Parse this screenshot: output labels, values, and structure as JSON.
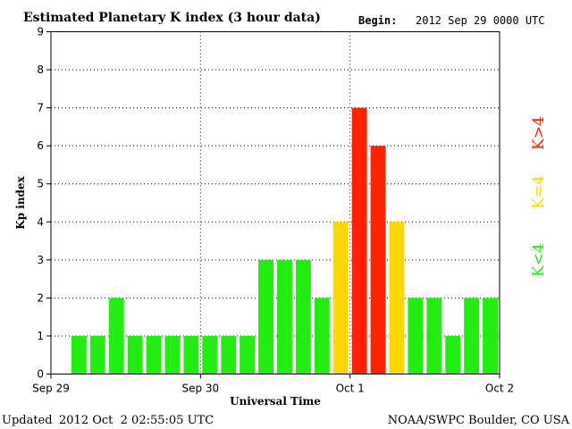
{
  "header": {
    "title": "Estimated Planetary K index (3 hour data)",
    "begin_label": "Begin:",
    "begin_value": "2012 Sep 29 0000 UTC"
  },
  "footer": {
    "updated_label": "Updated",
    "updated_value": "2012 Oct  2 02:55:05 UTC",
    "source": "NOAA/SWPC Boulder, CO USA"
  },
  "legend": {
    "low": "K<4",
    "equal": "K=4",
    "high": "K>4"
  },
  "colors": {
    "low": "#22ee11",
    "equal": "#ffd700",
    "high": "#ff2200",
    "grid": "#000000"
  },
  "chart_data": {
    "type": "bar",
    "title": "Estimated Planetary K index (3 hour data)",
    "xlabel": "Universal Time",
    "ylabel": "Kp index",
    "ylim": [
      0,
      9
    ],
    "yticks": [
      0,
      1,
      2,
      3,
      4,
      5,
      6,
      7,
      8,
      9
    ],
    "xticks": [
      "Sep 29",
      "Sep 30",
      "Oct 1",
      "Oct 2"
    ],
    "grid": true,
    "bin_hours": 3,
    "values": [
      1,
      1,
      2,
      1,
      1,
      1,
      1,
      1,
      1,
      1,
      3,
      3,
      3,
      2,
      4,
      7,
      6,
      4,
      2,
      2,
      1,
      2,
      2
    ]
  }
}
